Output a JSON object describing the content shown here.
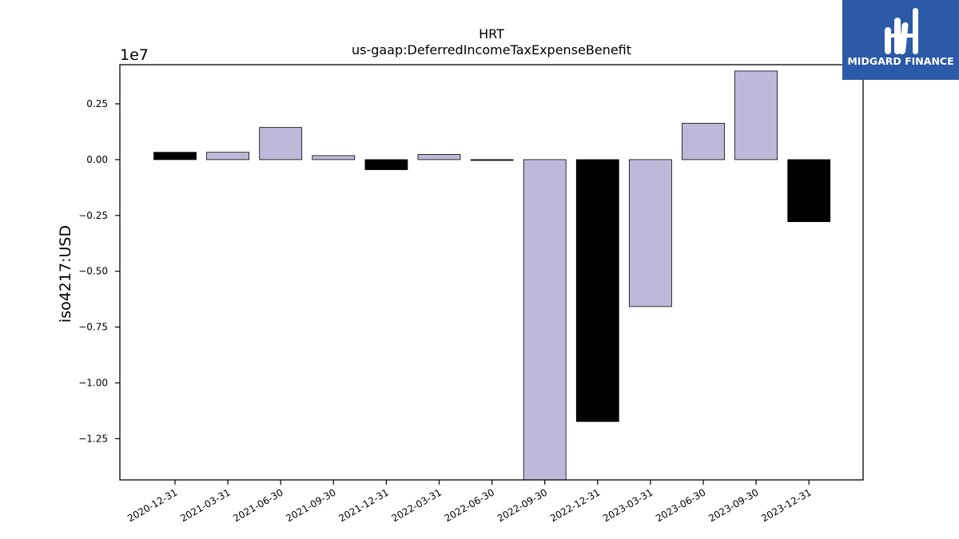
{
  "chart_data": {
    "type": "bar",
    "title": "HRT",
    "subtitle": "us-gaap:DeferredIncomeTaxExpenseBenefit",
    "ylabel": "iso4217:USD",
    "xlabel": "",
    "offset_label": "1e7",
    "scale": 10000000,
    "categories": [
      "2020-12-31",
      "2021-03-31",
      "2021-06-30",
      "2021-09-30",
      "2021-12-31",
      "2022-03-31",
      "2022-06-30",
      "2022-09-30",
      "2022-12-31",
      "2023-03-31",
      "2023-06-30",
      "2023-09-30",
      "2023-12-31"
    ],
    "values": [
      330000,
      330000,
      1440000,
      180000,
      -450000,
      230000,
      -30000,
      -14500000,
      -11730000,
      -6580000,
      1630000,
      3970000,
      -2780000
    ],
    "bar_colors": [
      "#000000",
      "#bdbad9",
      "#bdbad9",
      "#bdbad9",
      "#000000",
      "#bdbad9",
      "#000000",
      "#bdbad9",
      "#000000",
      "#bdbad9",
      "#bdbad9",
      "#bdbad9",
      "#000000"
    ],
    "yticks": [
      0.25,
      0.0,
      -0.25,
      -0.5,
      -0.75,
      -1.0,
      -1.25
    ],
    "ytick_labels": [
      "0.25",
      "0.00",
      "−0.25",
      "−0.50",
      "−0.75",
      "−1.00",
      "−1.25"
    ],
    "ylim": [
      -1.4345,
      0.4253
    ],
    "grid": false
  },
  "logo": {
    "text": "MIDGARD FINANCE",
    "background": "#2b5aa8"
  }
}
